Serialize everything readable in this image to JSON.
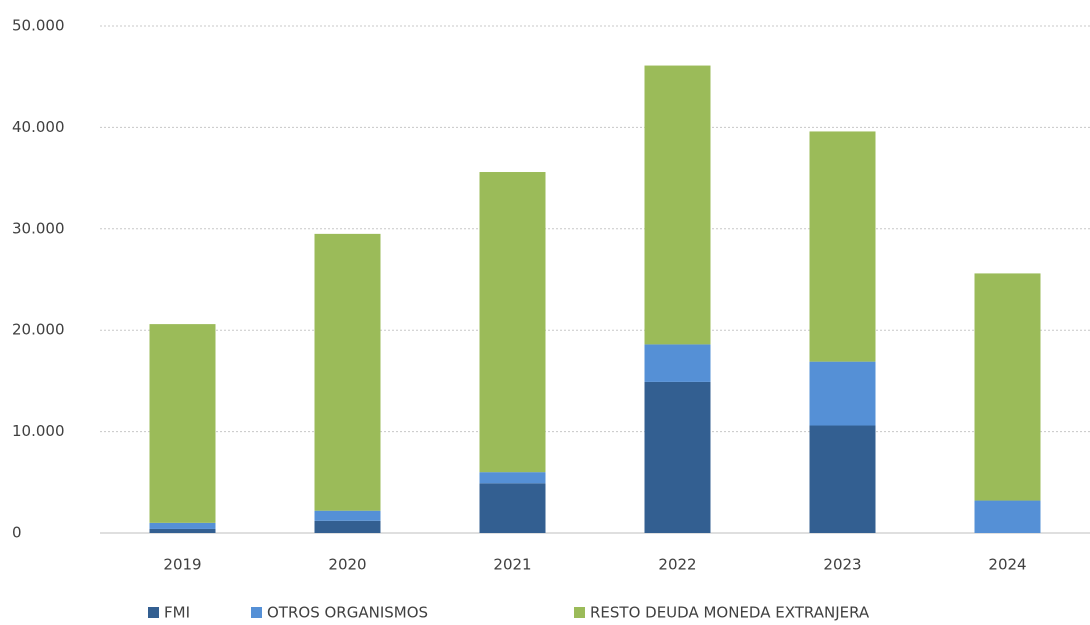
{
  "chart_data": {
    "type": "stacked_bar",
    "categories": [
      "2019",
      "2020",
      "2021",
      "2022",
      "2023",
      "2024"
    ],
    "series": [
      {
        "name": "FMI",
        "color": "#335f91",
        "values": [
          400,
          1200,
          4900,
          14900,
          10600,
          0
        ]
      },
      {
        "name": "OTROS ORGANISMOS",
        "color": "#5590d6",
        "values": [
          600,
          1000,
          1100,
          3700,
          6300,
          3200
        ]
      },
      {
        "name": "RESTO DEUDA MONEDA EXTRANJERA",
        "color": "#9bbb59",
        "values": [
          19600,
          27300,
          29600,
          27500,
          22700,
          22400
        ]
      }
    ],
    "ylim": [
      0,
      50000
    ],
    "yticks": [
      0,
      {
        "value": 10000,
        "label": "10.000"
      },
      {
        "value": 20000,
        "label": "20.000"
      },
      {
        "value": 30000,
        "label": "30.000"
      },
      {
        "value": 40000,
        "label": "40.000"
      },
      {
        "value": 50000,
        "label": "50.000"
      }
    ],
    "grid": true,
    "legend": "bottom"
  }
}
